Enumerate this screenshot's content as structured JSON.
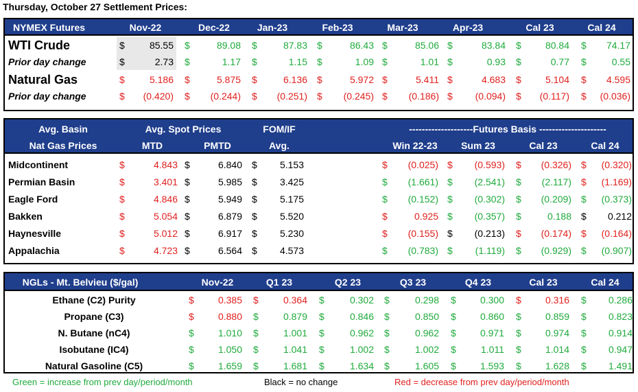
{
  "title": "Thursday, October 27 Settlement Prices:",
  "futures": {
    "header": [
      "NYMEX Futures",
      "Nov-22",
      "Dec-22",
      "Jan-23",
      "Feb-23",
      "Mar-23",
      "Apr-23",
      "Cal 23",
      "Cal 24"
    ],
    "rows": [
      {
        "label": "WTI Crude",
        "big": true,
        "italic": false,
        "cells": [
          {
            "v": "85.55",
            "c": "k"
          },
          {
            "v": "89.08",
            "c": "g"
          },
          {
            "v": "87.83",
            "c": "g"
          },
          {
            "v": "86.43",
            "c": "g"
          },
          {
            "v": "85.06",
            "c": "g"
          },
          {
            "v": "83.84",
            "c": "g"
          },
          {
            "v": "80.84",
            "c": "g"
          },
          {
            "v": "74.17",
            "c": "g"
          }
        ]
      },
      {
        "label": "Prior day change",
        "big": false,
        "italic": true,
        "cells": [
          {
            "v": "2.73",
            "c": "k"
          },
          {
            "v": "1.17",
            "c": "g"
          },
          {
            "v": "1.15",
            "c": "g"
          },
          {
            "v": "1.09",
            "c": "g"
          },
          {
            "v": "1.01",
            "c": "g"
          },
          {
            "v": "0.93",
            "c": "g"
          },
          {
            "v": "0.77",
            "c": "g"
          },
          {
            "v": "0.55",
            "c": "g"
          }
        ]
      },
      {
        "label": "Natural Gas",
        "big": true,
        "italic": false,
        "cells": [
          {
            "v": "5.186",
            "c": "rd"
          },
          {
            "v": "5.875",
            "c": "rd"
          },
          {
            "v": "6.136",
            "c": "rd"
          },
          {
            "v": "5.972",
            "c": "rd"
          },
          {
            "v": "5.411",
            "c": "rd"
          },
          {
            "v": "4.683",
            "c": "rd"
          },
          {
            "v": "5.104",
            "c": "rd"
          },
          {
            "v": "4.595",
            "c": "rd"
          }
        ]
      },
      {
        "label": "Prior day change",
        "big": false,
        "italic": true,
        "cells": [
          {
            "v": "(0.420)",
            "c": "rd"
          },
          {
            "v": "(0.244)",
            "c": "rd"
          },
          {
            "v": "(0.251)",
            "c": "rd"
          },
          {
            "v": "(0.245)",
            "c": "rd"
          },
          {
            "v": "(0.186)",
            "c": "rd"
          },
          {
            "v": "(0.094)",
            "c": "rd"
          },
          {
            "v": "(0.117)",
            "c": "rd"
          },
          {
            "v": "(0.036)",
            "c": "rd"
          }
        ]
      }
    ]
  },
  "basin": {
    "header1": [
      "Avg. Basin",
      "Avg. Spot Prices",
      "FOM/IF",
      "--------------------Futures Basis ---------------------"
    ],
    "header2": [
      "Nat Gas Prices",
      "MTD",
      "PMTD",
      "Avg.",
      "Win 22-23",
      "Sum 23",
      "Cal 23",
      "Cal 24"
    ],
    "rows": [
      {
        "label": "Midcontinent",
        "cells": [
          {
            "v": "4.843",
            "c": "rd"
          },
          {
            "v": "6.840",
            "c": "k"
          },
          {
            "v": "5.153",
            "c": "k"
          },
          {
            "v": "(0.025)",
            "c": "rd"
          },
          {
            "v": "(0.593)",
            "c": "rd"
          },
          {
            "v": "(0.326)",
            "c": "rd"
          },
          {
            "v": "(0.320)",
            "c": "rd"
          }
        ]
      },
      {
        "label": "Permian Basin",
        "cells": [
          {
            "v": "3.401",
            "c": "rd"
          },
          {
            "v": "5.985",
            "c": "k"
          },
          {
            "v": "3.425",
            "c": "k"
          },
          {
            "v": "(1.661)",
            "c": "g"
          },
          {
            "v": "(2.541)",
            "c": "g"
          },
          {
            "v": "(2.117)",
            "c": "g"
          },
          {
            "v": "(1.169)",
            "c": "rd"
          }
        ]
      },
      {
        "label": "Eagle Ford",
        "cells": [
          {
            "v": "4.846",
            "c": "rd"
          },
          {
            "v": "5.949",
            "c": "k"
          },
          {
            "v": "5.175",
            "c": "k"
          },
          {
            "v": "(0.152)",
            "c": "g"
          },
          {
            "v": "(0.302)",
            "c": "g"
          },
          {
            "v": "(0.209)",
            "c": "g"
          },
          {
            "v": "(0.373)",
            "c": "g"
          }
        ]
      },
      {
        "label": "Bakken",
        "cells": [
          {
            "v": "5.054",
            "c": "rd"
          },
          {
            "v": "6.879",
            "c": "k"
          },
          {
            "v": "5.520",
            "c": "k"
          },
          {
            "v": "0.925",
            "c": "rd"
          },
          {
            "v": "(0.357)",
            "c": "g"
          },
          {
            "v": "0.188",
            "c": "g"
          },
          {
            "v": "0.212",
            "c": "k"
          }
        ]
      },
      {
        "label": "Haynesville",
        "cells": [
          {
            "v": "5.012",
            "c": "rd"
          },
          {
            "v": "6.917",
            "c": "k"
          },
          {
            "v": "5.230",
            "c": "k"
          },
          {
            "v": "(0.155)",
            "c": "rd"
          },
          {
            "v": "(0.213)",
            "c": "k"
          },
          {
            "v": "(0.174)",
            "c": "rd"
          },
          {
            "v": "(0.164)",
            "c": "rd"
          }
        ]
      },
      {
        "label": "Appalachia",
        "cells": [
          {
            "v": "4.723",
            "c": "rd"
          },
          {
            "v": "6.564",
            "c": "k"
          },
          {
            "v": "4.573",
            "c": "k"
          },
          {
            "v": "(0.783)",
            "c": "g"
          },
          {
            "v": "(1.119)",
            "c": "g"
          },
          {
            "v": "(0.929)",
            "c": "g"
          },
          {
            "v": "(0.907)",
            "c": "g"
          }
        ]
      }
    ]
  },
  "ngl": {
    "header": [
      "NGLs - Mt. Belvieu ($/gal)",
      "Nov-22",
      "Q1 23",
      "Q2 23",
      "Q3 23",
      "Q4 23",
      "Cal 23",
      "Cal 24"
    ],
    "rows": [
      {
        "label": "Ethane (C2) Purity",
        "cells": [
          {
            "v": "0.385",
            "c": "rd"
          },
          {
            "v": "0.364",
            "c": "rd"
          },
          {
            "v": "0.302",
            "c": "g"
          },
          {
            "v": "0.298",
            "c": "g"
          },
          {
            "v": "0.300",
            "c": "g"
          },
          {
            "v": "0.316",
            "c": "rd"
          },
          {
            "v": "0.286",
            "c": "g"
          }
        ]
      },
      {
        "label": "Propane (C3)",
        "cells": [
          {
            "v": "0.880",
            "c": "rd"
          },
          {
            "v": "0.879",
            "c": "g"
          },
          {
            "v": "0.846",
            "c": "g"
          },
          {
            "v": "0.850",
            "c": "g"
          },
          {
            "v": "0.860",
            "c": "g"
          },
          {
            "v": "0.859",
            "c": "g"
          },
          {
            "v": "0.823",
            "c": "g"
          }
        ]
      },
      {
        "label": "N. Butane (nC4)",
        "cells": [
          {
            "v": "1.010",
            "c": "g"
          },
          {
            "v": "1.001",
            "c": "g"
          },
          {
            "v": "0.962",
            "c": "g"
          },
          {
            "v": "0.962",
            "c": "g"
          },
          {
            "v": "0.971",
            "c": "g"
          },
          {
            "v": "0.974",
            "c": "g"
          },
          {
            "v": "0.914",
            "c": "g"
          }
        ]
      },
      {
        "label": "Isobutane (IC4)",
        "cells": [
          {
            "v": "1.050",
            "c": "g"
          },
          {
            "v": "1.041",
            "c": "g"
          },
          {
            "v": "1.002",
            "c": "g"
          },
          {
            "v": "1.002",
            "c": "g"
          },
          {
            "v": "1.011",
            "c": "g"
          },
          {
            "v": "1.014",
            "c": "g"
          },
          {
            "v": "0.947",
            "c": "g"
          }
        ]
      },
      {
        "label": "Natural Gasoline (C5)",
        "cells": [
          {
            "v": "1.659",
            "c": "g"
          },
          {
            "v": "1.681",
            "c": "g"
          },
          {
            "v": "1.634",
            "c": "g"
          },
          {
            "v": "1.605",
            "c": "g"
          },
          {
            "v": "1.593",
            "c": "g"
          },
          {
            "v": "1.628",
            "c": "g"
          },
          {
            "v": "1.491",
            "c": "g"
          }
        ]
      }
    ]
  },
  "currency_symbol": "$",
  "legend": {
    "green": "Green = increase from prev day/period/month",
    "black": "Black = no change",
    "red": "Red = decrease from prev day/period/month"
  },
  "colors": {
    "header_bg": "#1f3e8c",
    "green": "#1faa3c",
    "red": "#e0201e",
    "black": "#000000"
  }
}
